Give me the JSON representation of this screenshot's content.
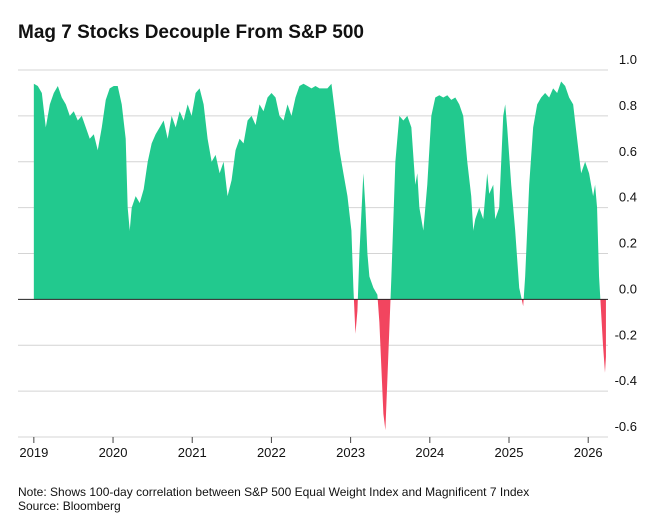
{
  "chart_data": {
    "type": "area",
    "title": "Mag 7 Stocks Decouple From S&P 500",
    "note": "Note: Shows 100-day correlation between S&P 500 Equal Weight Index and Magnificent 7 Index",
    "source": "Source: Bloomberg",
    "positive_color": "#22c98e",
    "negative_color": "#f2455f",
    "grid": true,
    "xlim": [
      2018.8,
      2026.25
    ],
    "xticks": [
      2019,
      2020,
      2021,
      2022,
      2023,
      2024,
      2025,
      2026
    ],
    "ylim": [
      -0.6,
      1.0
    ],
    "yticks": [
      {
        "value": 1,
        "label": "1.0"
      },
      0.8,
      0.6,
      0.4,
      0.2,
      {
        "value": 0,
        "label": "0.0"
      },
      -0.2,
      -0.4,
      -0.6
    ],
    "x": [
      2019.0,
      2019.05,
      2019.101,
      2019.151,
      2019.202,
      2019.252,
      2019.303,
      2019.353,
      2019.404,
      2019.454,
      2019.504,
      2019.555,
      2019.605,
      2019.656,
      2019.706,
      2019.757,
      2019.807,
      2019.858,
      2019.908,
      2019.958,
      2020.009,
      2020.059,
      2020.11,
      2020.16,
      2020.185,
      2020.211,
      2020.236,
      2020.286,
      2020.337,
      2020.387,
      2020.438,
      2020.488,
      2020.538,
      2020.589,
      2020.639,
      2020.69,
      2020.74,
      2020.791,
      2020.841,
      2020.892,
      2020.942,
      2020.992,
      2021.043,
      2021.093,
      2021.144,
      2021.194,
      2021.245,
      2021.295,
      2021.346,
      2021.396,
      2021.446,
      2021.497,
      2021.547,
      2021.598,
      2021.648,
      2021.699,
      2021.749,
      2021.8,
      2021.85,
      2021.9,
      2021.951,
      2022.001,
      2022.052,
      2022.102,
      2022.153,
      2022.203,
      2022.253,
      2022.304,
      2022.354,
      2022.405,
      2022.455,
      2022.506,
      2022.556,
      2022.607,
      2022.657,
      2022.707,
      2022.758,
      2022.808,
      2022.859,
      2022.909,
      2022.96,
      2023.01,
      2023.035,
      2023.061,
      2023.086,
      2023.111,
      2023.161,
      2023.187,
      2023.212,
      2023.237,
      2023.288,
      2023.338,
      2023.363,
      2023.414,
      2023.439,
      2023.464,
      2023.515,
      2023.565,
      2023.615,
      2023.666,
      2023.716,
      2023.767,
      2023.817,
      2023.842,
      2023.868,
      2023.918,
      2023.968,
      2024.019,
      2024.069,
      2024.12,
      2024.17,
      2024.221,
      2024.271,
      2024.322,
      2024.372,
      2024.422,
      2024.473,
      2024.523,
      2024.549,
      2024.574,
      2024.624,
      2024.675,
      2024.7,
      2024.725,
      2024.75,
      2024.801,
      2024.826,
      2024.876,
      2024.927,
      2024.952,
      2024.977,
      2025.028,
      2025.078,
      2025.129,
      2025.179,
      2025.204,
      2025.255,
      2025.305,
      2025.356,
      2025.406,
      2025.456,
      2025.507,
      2025.557,
      2025.608,
      2025.658,
      2025.709,
      2025.759,
      2025.81,
      2025.86,
      2025.911,
      2025.961,
      2026.011,
      2026.062,
      2026.087,
      2026.112,
      2026.137,
      2026.162,
      2026.187,
      2026.212,
      2026.224
    ],
    "values": [
      0.94,
      0.93,
      0.9,
      0.75,
      0.85,
      0.9,
      0.93,
      0.88,
      0.85,
      0.8,
      0.82,
      0.78,
      0.8,
      0.75,
      0.7,
      0.72,
      0.65,
      0.75,
      0.87,
      0.92,
      0.93,
      0.93,
      0.85,
      0.7,
      0.4,
      0.3,
      0.4,
      0.45,
      0.42,
      0.48,
      0.6,
      0.68,
      0.72,
      0.75,
      0.78,
      0.7,
      0.8,
      0.75,
      0.82,
      0.78,
      0.85,
      0.8,
      0.9,
      0.92,
      0.85,
      0.7,
      0.6,
      0.63,
      0.55,
      0.6,
      0.45,
      0.52,
      0.65,
      0.7,
      0.68,
      0.78,
      0.8,
      0.76,
      0.85,
      0.82,
      0.88,
      0.9,
      0.88,
      0.8,
      0.78,
      0.85,
      0.8,
      0.88,
      0.93,
      0.94,
      0.93,
      0.92,
      0.93,
      0.92,
      0.92,
      0.92,
      0.94,
      0.8,
      0.65,
      0.55,
      0.45,
      0.3,
      0.05,
      -0.15,
      -0.05,
      0.2,
      0.55,
      0.4,
      0.2,
      0.1,
      0.05,
      0.02,
      -0.1,
      -0.5,
      -0.57,
      -0.35,
      0.1,
      0.6,
      0.8,
      0.78,
      0.8,
      0.75,
      0.5,
      0.55,
      0.4,
      0.3,
      0.5,
      0.8,
      0.88,
      0.89,
      0.88,
      0.89,
      0.87,
      0.88,
      0.85,
      0.8,
      0.6,
      0.45,
      0.3,
      0.35,
      0.4,
      0.35,
      0.45,
      0.55,
      0.46,
      0.5,
      0.35,
      0.4,
      0.8,
      0.85,
      0.75,
      0.5,
      0.3,
      0.05,
      -0.03,
      0.1,
      0.5,
      0.75,
      0.85,
      0.88,
      0.9,
      0.88,
      0.92,
      0.9,
      0.95,
      0.93,
      0.88,
      0.85,
      0.7,
      0.55,
      0.6,
      0.55,
      0.45,
      0.5,
      0.4,
      0.1,
      -0.05,
      -0.2,
      -0.32,
      -0.25
    ]
  }
}
